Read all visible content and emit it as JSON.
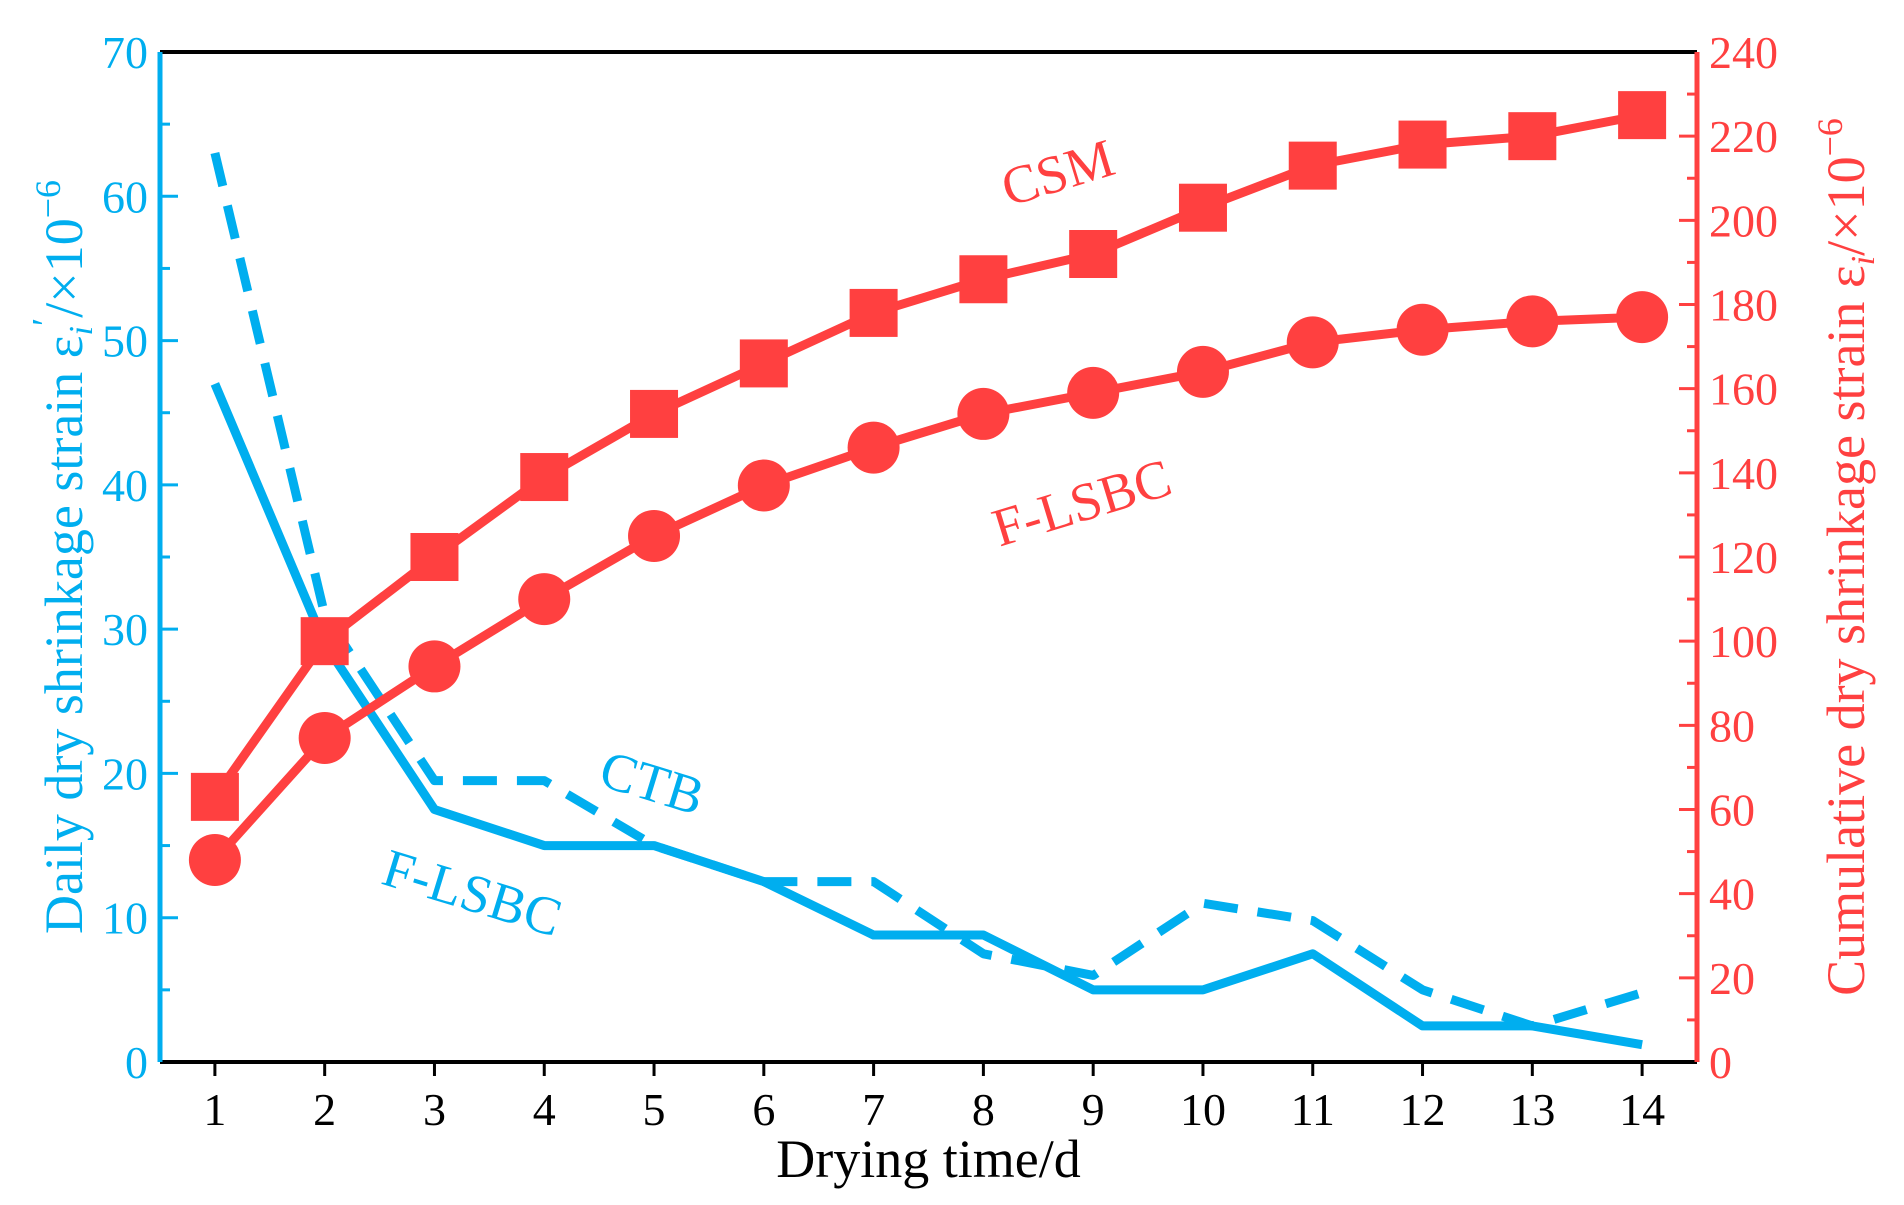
{
  "chart_data": {
    "type": "line",
    "xlabel": "Drying time/d",
    "ylabel_left": "Daily dry shrinkage strain",
    "ylabel_left_symbol": "ε",
    "ylabel_left_sub": "i",
    "ylabel_left_prime": "′",
    "ylabel_left_unit": "/×10",
    "ylabel_left_exp": "−6",
    "ylabel_right": "Cumulative dry shrinkage strain",
    "ylabel_right_symbol": "ε",
    "ylabel_right_sub": "i",
    "ylabel_right_unit": "/×10",
    "ylabel_right_exp": "−6",
    "xlim": [
      0.5,
      14.5
    ],
    "ylim_left": [
      0,
      70
    ],
    "ylim_right": [
      0,
      240
    ],
    "x": [
      1,
      2,
      3,
      4,
      5,
      6,
      7,
      8,
      9,
      10,
      11,
      12,
      13,
      14
    ],
    "x_ticks": [
      1,
      2,
      3,
      4,
      5,
      6,
      7,
      8,
      9,
      10,
      11,
      12,
      13,
      14
    ],
    "y_ticks_left": [
      0,
      10,
      20,
      30,
      40,
      50,
      60,
      70
    ],
    "y_ticks_right": [
      0,
      20,
      40,
      60,
      80,
      100,
      120,
      140,
      160,
      180,
      200,
      220,
      240
    ],
    "colors": {
      "daily": "#00aeef",
      "cumulative": "#ff4040",
      "frame": "#000000"
    },
    "series": [
      {
        "name": "CTB",
        "axis": "left",
        "style": "dashed",
        "marker": "none",
        "values": [
          63,
          31,
          19.5,
          19.5,
          15,
          12.5,
          12.5,
          7.5,
          6,
          11,
          9.8,
          5,
          2.5,
          4.8
        ]
      },
      {
        "name": "F-LSBC",
        "axis": "left",
        "style": "solid",
        "marker": "none",
        "values": [
          47,
          29,
          17.5,
          15,
          15,
          12.5,
          8.8,
          8.8,
          5,
          5,
          7.5,
          2.5,
          2.5,
          1.2
        ]
      },
      {
        "name": "CSM",
        "axis": "right",
        "style": "solid",
        "marker": "square",
        "values": [
          63,
          100,
          120,
          139,
          154,
          166,
          178,
          186,
          192,
          203,
          213,
          218,
          220,
          225
        ]
      },
      {
        "name": "F-LSBC",
        "axis": "right",
        "style": "solid",
        "marker": "circle",
        "values": [
          48,
          77,
          94,
          110,
          125,
          137,
          146,
          154,
          159,
          164,
          171,
          174,
          176,
          177
        ]
      }
    ],
    "annotations": [
      {
        "text": "CSM",
        "color": "cumulative"
      },
      {
        "text": "F-LSBC",
        "color": "cumulative"
      },
      {
        "text": "CTB",
        "color": "daily"
      },
      {
        "text": "F-LSBC",
        "color": "daily"
      }
    ]
  }
}
